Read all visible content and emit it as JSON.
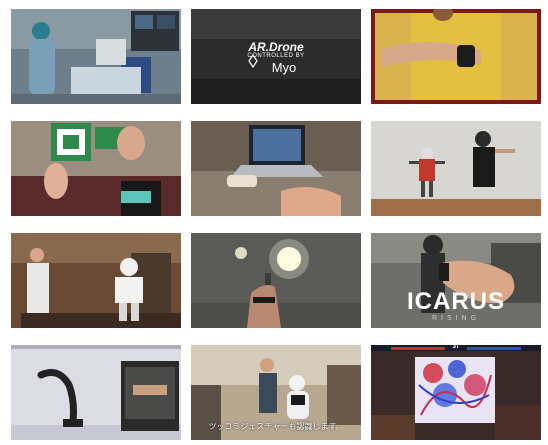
{
  "gallery": {
    "items": [
      {
        "id": "surgery-room",
        "overlay": ""
      },
      {
        "id": "ar-drone",
        "overlay_line1": "AR.Drone",
        "overlay_line2": "CONTROLLED BY",
        "overlay_line3": "Myo"
      },
      {
        "id": "armband-closeup",
        "overlay": ""
      },
      {
        "id": "gesture-game",
        "overlay": ""
      },
      {
        "id": "desk-laptop",
        "overlay": ""
      },
      {
        "id": "robot-mimic",
        "overlay": ""
      },
      {
        "id": "humanoid-robot-room",
        "overlay": ""
      },
      {
        "id": "lights-control",
        "overlay": ""
      },
      {
        "id": "icarus",
        "overlay_title": "ICARUS",
        "overlay_subtitle": "RISING"
      },
      {
        "id": "robot-arm-software",
        "overlay": ""
      },
      {
        "id": "pepper-robot",
        "overlay_caption": "ツッコミジェスチャーも認識します。"
      },
      {
        "id": "fps-game",
        "overlay_hud": "37"
      }
    ]
  },
  "colors": {
    "background": "#ffffff"
  }
}
